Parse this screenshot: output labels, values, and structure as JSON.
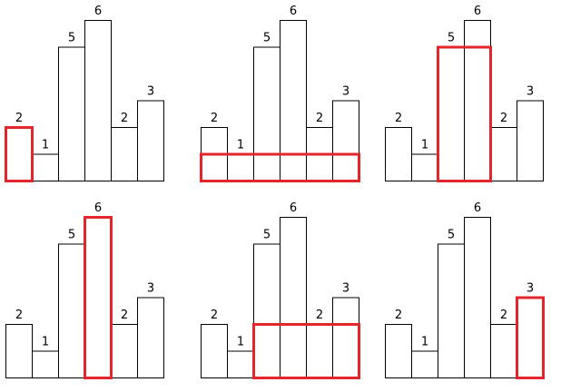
{
  "chart_data": {
    "type": "bar",
    "description_of_panels": [],
    "values": [
      2,
      1,
      5,
      6,
      2,
      3
    ],
    "value_labels": [
      "2",
      "1",
      "5",
      "6",
      "2",
      "3"
    ],
    "panels": [
      {
        "highlight": {
          "start": 0,
          "end": 0,
          "height": 2
        }
      },
      {
        "highlight": {
          "start": 0,
          "end": 5,
          "height": 1
        }
      },
      {
        "highlight": {
          "start": 2,
          "end": 3,
          "height": 5
        }
      },
      {
        "highlight": {
          "start": 3,
          "end": 3,
          "height": 6
        }
      },
      {
        "highlight": {
          "start": 2,
          "end": 5,
          "height": 2
        }
      },
      {
        "highlight": {
          "start": 5,
          "end": 5,
          "height": 3
        }
      }
    ]
  },
  "colors": {
    "bar_stroke": "#000000",
    "bar_fill": "#ffffff",
    "highlight": "#e3262c"
  }
}
